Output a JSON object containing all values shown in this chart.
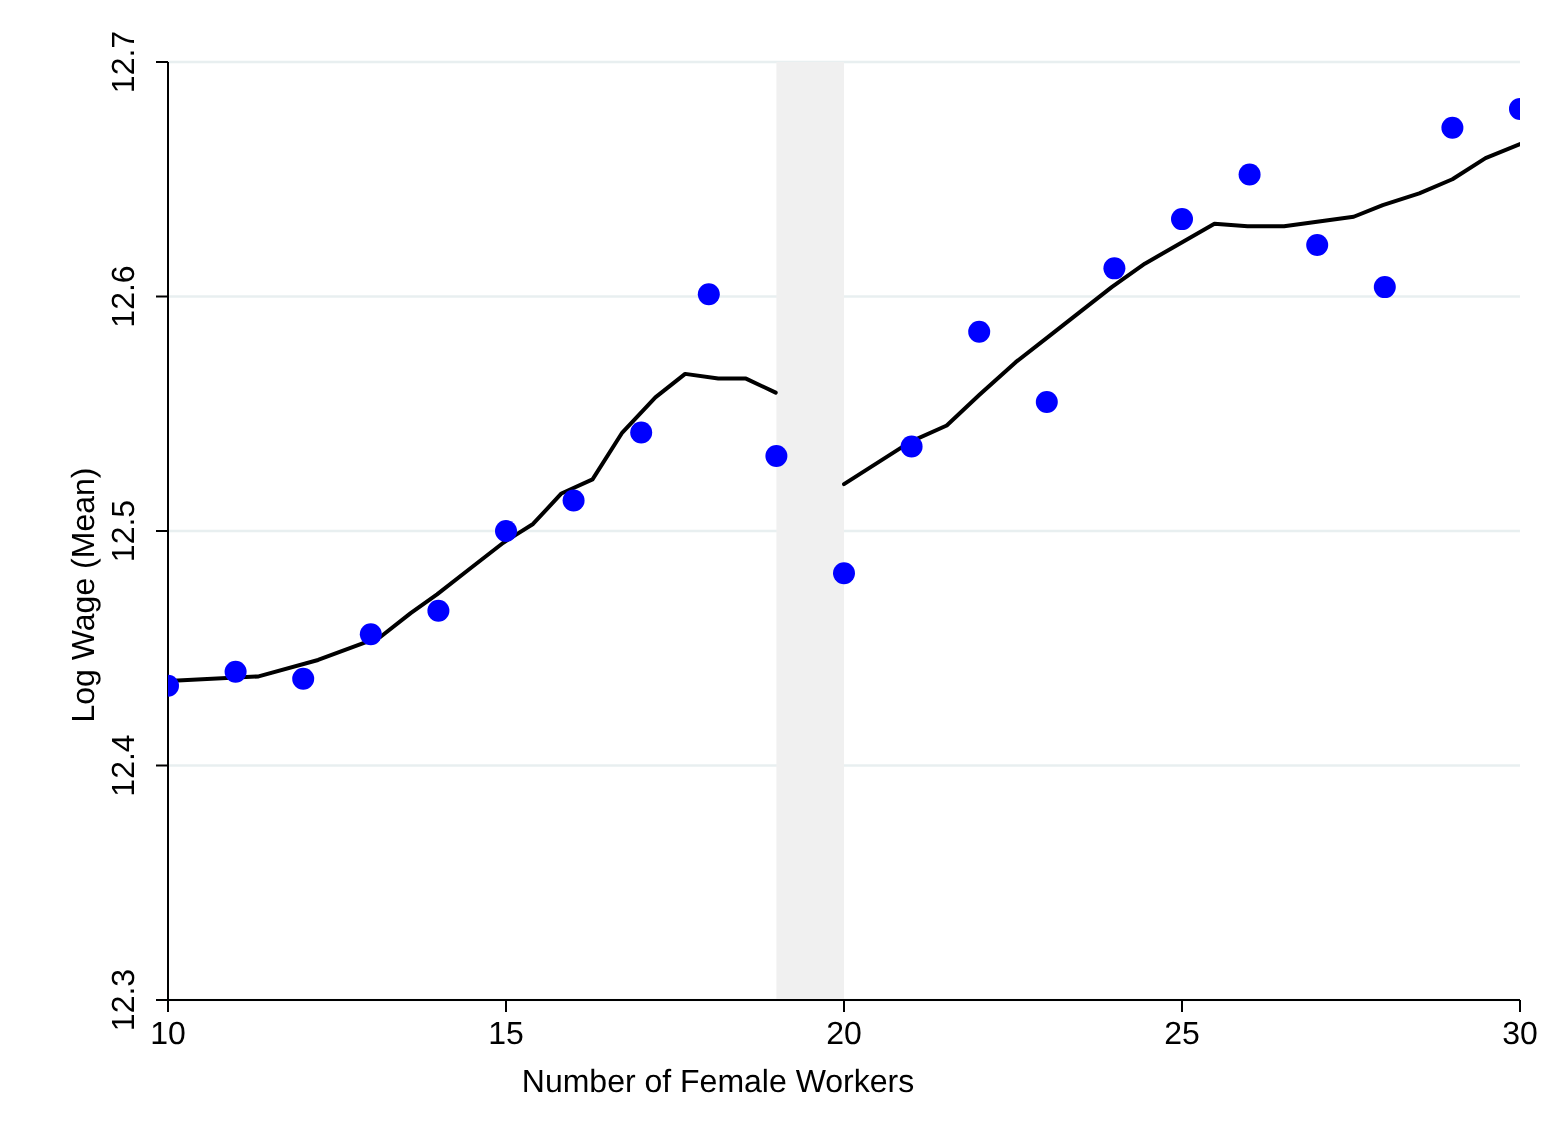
{
  "chart_data": {
    "type": "scatter",
    "xlabel": "Number of Female Workers",
    "ylabel": "Log Wage (Mean)",
    "xlim": [
      10,
      30
    ],
    "xticks": [
      10,
      15,
      20,
      25,
      30
    ],
    "ylim": [
      12.3,
      12.7
    ],
    "yticks": [
      12.3,
      12.4,
      12.5,
      12.6,
      12.7
    ],
    "grid": "y",
    "marker": "circle",
    "series": [
      {
        "color": "#0000ff",
        "x": [
          10,
          11,
          12,
          13,
          14,
          15,
          16,
          17,
          18,
          19,
          20,
          21,
          22,
          23,
          24,
          25,
          26,
          27,
          28,
          29,
          30
        ],
        "values": [
          12.434,
          12.44,
          12.437,
          12.456,
          12.466,
          12.5,
          12.513,
          12.542,
          12.601,
          12.532,
          12.482,
          12.536,
          12.585,
          12.555,
          12.612,
          12.633,
          12.652,
          12.622,
          12.604,
          12.672,
          12.68
        ]
      },
      {
        "type": "line",
        "marker": "none",
        "color": "#000000",
        "x": [
          10,
          11.34,
          12.22,
          13.15,
          13.59,
          13.98,
          14.47,
          14.96,
          15.4,
          15.82,
          16.28,
          16.72,
          17.21,
          17.65,
          18.14,
          18.55,
          18.99
        ],
        "values": [
          12.436,
          12.438,
          12.445,
          12.455,
          12.465,
          12.473,
          12.484,
          12.495,
          12.503,
          12.516,
          12.522,
          12.542,
          12.557,
          12.567,
          12.565,
          12.565,
          12.559
        ]
      },
      {
        "type": "line",
        "marker": "none",
        "color": "#000000",
        "x": [
          20,
          20.98,
          21.52,
          22,
          22.54,
          23.03,
          23.96,
          24.45,
          25.48,
          25.97,
          26.51,
          27.54,
          27.97,
          28.51,
          29,
          29.49,
          30
        ],
        "values": [
          12.52,
          12.538,
          12.545,
          12.558,
          12.572,
          12.583,
          12.604,
          12.614,
          12.631,
          12.63,
          12.63,
          12.634,
          12.639,
          12.644,
          12.65,
          12.659,
          12.665
        ]
      }
    ],
    "bands": [
      {
        "axis": "x",
        "from": 19,
        "to": 20,
        "color": "#f0f0f0"
      }
    ]
  }
}
